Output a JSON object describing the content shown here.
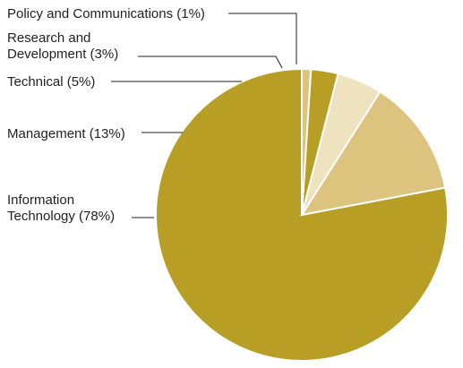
{
  "chart_data": {
    "type": "pie",
    "title": "",
    "legend": "none",
    "slices": [
      {
        "label": "Information Technology (78%)",
        "lines": [
          "Information",
          "Technology (78%)"
        ],
        "value": 78,
        "color": "#b89e25"
      },
      {
        "label": "Management (13%)",
        "lines": [
          "Management (13%)"
        ],
        "value": 13,
        "color": "#dcc47e"
      },
      {
        "label": "Technical (5%)",
        "lines": [
          "Technical (5%)"
        ],
        "value": 5,
        "color": "#eee2bf"
      },
      {
        "label": "Research and Development (3%)",
        "lines": [
          "Research and",
          "Development (3%)"
        ],
        "value": 3,
        "color": "#b89e25"
      },
      {
        "label": "Policy and Communications (1%)",
        "lines": [
          "Policy and Communications (1%)"
        ],
        "value": 1,
        "color": "#dcc47e"
      }
    ]
  }
}
